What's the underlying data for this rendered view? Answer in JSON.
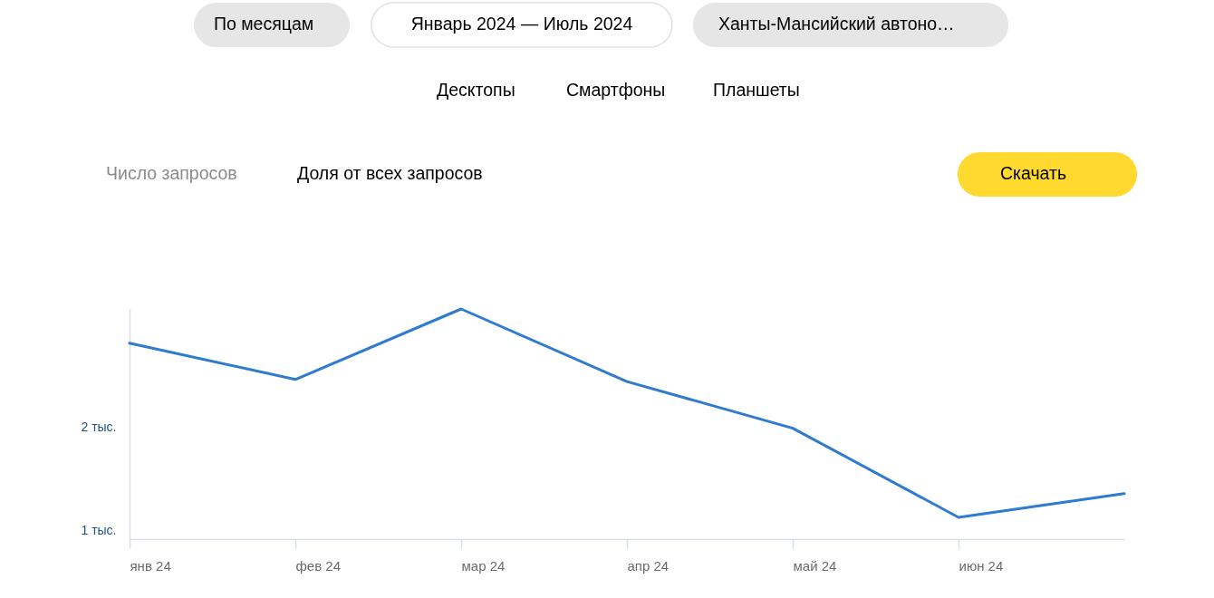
{
  "chart_data": {
    "type": "line",
    "categories": [
      "янв 24",
      "фев 24",
      "мар 24",
      "апр 24",
      "май 24",
      "июн 24",
      null
    ],
    "series": [
      {
        "color": "#2f7bcf",
        "values": [
          2.81,
          2.46,
          3.14,
          2.44,
          1.99,
          1.13,
          1.36
        ]
      }
    ],
    "ylim": [
      0.92,
      3.14
    ],
    "yticks": [
      {
        "value": 1,
        "label": "1 тыс."
      },
      {
        "value": 2,
        "label": "2 тыс."
      }
    ],
    "line_style": "solid",
    "marker": "none",
    "annotations": [
      "По месяцам",
      "Январь 2024 — Июль 2024",
      "Ханты-Мансийский автоно…",
      "Десктопы",
      "Смартфоны",
      "Планшеты",
      "Число запросов",
      "Доля от всех запросов",
      "Скачать"
    ]
  }
}
